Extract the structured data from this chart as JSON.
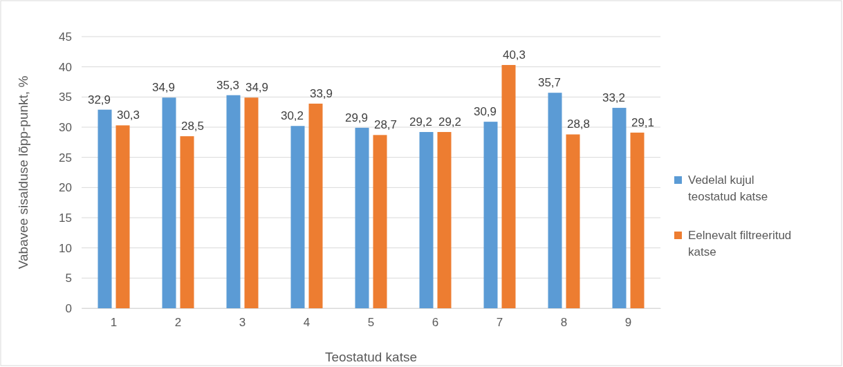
{
  "chart_data": {
    "type": "bar",
    "xlabel": "Teostatud katse",
    "ylabel": "Vabavee sisalduse lõpp-punkt, %",
    "categories": [
      "1",
      "2",
      "3",
      "4",
      "5",
      "6",
      "7",
      "8",
      "9"
    ],
    "series": [
      {
        "name": "Vedelal kujul teostatud katse",
        "color": "#5b9bd5",
        "values": [
          32.9,
          34.9,
          35.3,
          30.2,
          29.9,
          29.2,
          30.9,
          35.7,
          33.2
        ],
        "value_labels": [
          "32,9",
          "34,9",
          "35,3",
          "30,2",
          "29,9",
          "29,2",
          "30,9",
          "35,7",
          "33,2"
        ]
      },
      {
        "name": "Eelnevalt filtreeritud katse",
        "color": "#ed7d31",
        "values": [
          30.3,
          28.5,
          34.9,
          33.9,
          28.7,
          29.2,
          40.3,
          28.8,
          29.1
        ],
        "value_labels": [
          "30,3",
          "28,5",
          "34,9",
          "33,9",
          "28,7",
          "29,2",
          "40,3",
          "28,8",
          "29,1"
        ]
      }
    ],
    "ylim": [
      0,
      45
    ],
    "yticks": [
      0,
      5,
      10,
      15,
      20,
      25,
      30,
      35,
      40,
      45
    ],
    "grid": "y",
    "legend": "right"
  }
}
